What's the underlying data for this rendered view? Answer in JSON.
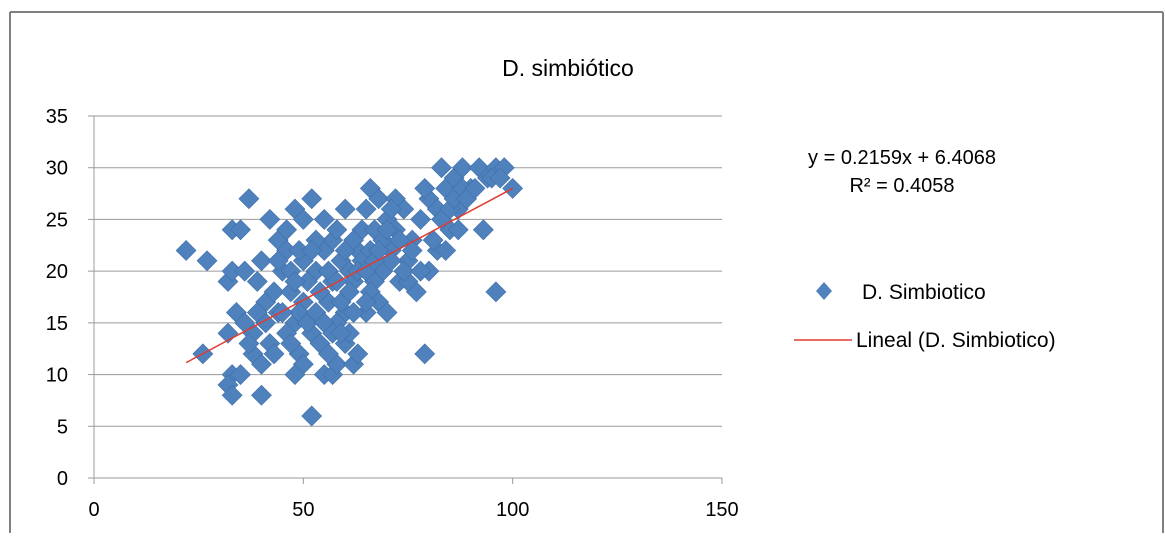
{
  "colors": {
    "marker": "#4F81BD",
    "trendline": "#E03C31",
    "gridline": "#9A9A9A",
    "frame": "#7F7F7F"
  },
  "chart_data": {
    "type": "scatter",
    "title": "D. simbiótico",
    "xlabel": "",
    "ylabel": "",
    "xlim": [
      0,
      150
    ],
    "ylim": [
      0,
      35
    ],
    "x_ticks": [
      "0",
      "50",
      "100",
      "150"
    ],
    "y_ticks": [
      "0",
      "5",
      "10",
      "15",
      "20",
      "25",
      "30",
      "35"
    ],
    "grid": "horizontal major gridlines",
    "legend_position": "right",
    "equation": "y = 0.2159x + 6.4068",
    "r_squared": "R² = 0.4058",
    "trendline": {
      "slope": 0.2159,
      "intercept": 6.4068,
      "x_range": [
        22,
        100
      ]
    },
    "series": [
      {
        "name": "D. Simbiotico",
        "marker": "diamond",
        "points": [
          [
            22,
            22
          ],
          [
            27,
            21
          ],
          [
            26,
            12
          ],
          [
            33,
            24
          ],
          [
            35,
            24
          ],
          [
            37,
            27
          ],
          [
            48,
            26
          ],
          [
            52,
            27
          ],
          [
            42,
            25
          ],
          [
            32,
            19
          ],
          [
            33,
            20
          ],
          [
            36,
            20
          ],
          [
            34,
            16
          ],
          [
            32,
            14
          ],
          [
            33,
            10
          ],
          [
            32,
            9
          ],
          [
            33,
            8
          ],
          [
            35,
            10
          ],
          [
            40,
            8
          ],
          [
            38,
            12
          ],
          [
            40,
            11
          ],
          [
            42,
            13
          ],
          [
            38,
            14
          ],
          [
            41,
            17
          ],
          [
            39,
            19
          ],
          [
            43,
            18
          ],
          [
            40,
            21
          ],
          [
            45,
            20
          ],
          [
            44,
            23
          ],
          [
            46,
            22
          ],
          [
            47,
            18
          ],
          [
            48,
            15
          ],
          [
            49,
            12
          ],
          [
            50,
            11
          ],
          [
            48,
            10
          ],
          [
            52,
            6
          ],
          [
            55,
            10
          ],
          [
            57,
            10
          ],
          [
            58,
            11
          ],
          [
            60,
            13
          ],
          [
            62,
            11
          ],
          [
            63,
            12
          ],
          [
            61,
            14
          ],
          [
            60,
            16
          ],
          [
            58,
            15
          ],
          [
            56,
            17
          ],
          [
            54,
            18
          ],
          [
            53,
            20
          ],
          [
            55,
            22
          ],
          [
            57,
            23
          ],
          [
            59,
            21
          ],
          [
            61,
            20
          ],
          [
            63,
            22
          ],
          [
            64,
            24
          ],
          [
            65,
            26
          ],
          [
            66,
            28
          ],
          [
            68,
            27
          ],
          [
            70,
            25
          ],
          [
            72,
            24
          ],
          [
            71,
            22
          ],
          [
            69,
            20
          ],
          [
            67,
            19
          ],
          [
            66,
            18
          ],
          [
            65,
            16
          ],
          [
            68,
            17
          ],
          [
            70,
            16
          ],
          [
            73,
            19
          ],
          [
            75,
            21
          ],
          [
            76,
            23
          ],
          [
            78,
            25
          ],
          [
            80,
            27
          ],
          [
            82,
            26
          ],
          [
            84,
            28
          ],
          [
            83,
            30
          ],
          [
            86,
            29
          ],
          [
            88,
            30
          ],
          [
            90,
            28
          ],
          [
            92,
            30
          ],
          [
            94,
            29
          ],
          [
            96,
            30
          ],
          [
            98,
            30
          ],
          [
            100,
            28
          ],
          [
            96,
            18
          ],
          [
            93,
            24
          ],
          [
            79,
            12
          ],
          [
            80,
            20
          ],
          [
            82,
            22
          ],
          [
            85,
            24
          ],
          [
            87,
            26
          ],
          [
            79,
            28
          ],
          [
            77,
            18
          ],
          [
            75,
            19
          ],
          [
            74,
            26
          ],
          [
            72,
            27
          ],
          [
            50,
            25
          ],
          [
            46,
            24
          ],
          [
            44,
            21
          ],
          [
            51,
            19
          ],
          [
            50,
            17
          ],
          [
            49,
            16
          ],
          [
            52,
            14
          ],
          [
            54,
            13
          ],
          [
            56,
            12
          ],
          [
            46,
            14
          ],
          [
            44,
            16
          ],
          [
            43,
            12
          ],
          [
            47,
            13
          ],
          [
            50,
            21
          ],
          [
            53,
            23
          ],
          [
            55,
            25
          ],
          [
            58,
            24
          ],
          [
            60,
            26
          ],
          [
            62,
            19
          ],
          [
            64,
            21
          ],
          [
            57,
            19
          ],
          [
            59,
            17
          ],
          [
            61,
            18
          ],
          [
            66,
            22
          ],
          [
            67,
            24
          ],
          [
            69,
            23
          ],
          [
            71,
            21
          ],
          [
            73,
            23
          ],
          [
            74,
            20
          ],
          [
            76,
            22
          ],
          [
            78,
            20
          ],
          [
            81,
            23
          ],
          [
            83,
            25
          ],
          [
            85,
            26
          ],
          [
            86,
            27
          ],
          [
            88,
            28
          ],
          [
            89,
            27
          ],
          [
            91,
            28
          ],
          [
            95,
            29
          ],
          [
            97,
            29
          ],
          [
            87,
            24
          ],
          [
            84,
            22
          ],
          [
            45,
            16
          ],
          [
            51,
            15
          ],
          [
            53,
            16
          ],
          [
            55,
            15
          ],
          [
            57,
            14
          ],
          [
            59,
            14
          ],
          [
            56,
            20
          ],
          [
            58,
            19
          ],
          [
            60,
            22
          ],
          [
            62,
            23
          ],
          [
            63,
            20
          ],
          [
            65,
            20
          ],
          [
            67,
            21
          ],
          [
            68,
            22
          ],
          [
            70,
            24
          ],
          [
            71,
            26
          ],
          [
            65,
            17
          ],
          [
            62,
            16
          ],
          [
            41,
            15
          ],
          [
            39,
            16
          ],
          [
            37,
            13
          ],
          [
            36,
            15
          ],
          [
            47,
            20
          ],
          [
            49,
            22
          ],
          [
            48,
            19
          ],
          [
            52,
            22
          ]
        ]
      },
      {
        "name": "Lineal (D. Simbiotico)",
        "marker": "line"
      }
    ]
  }
}
